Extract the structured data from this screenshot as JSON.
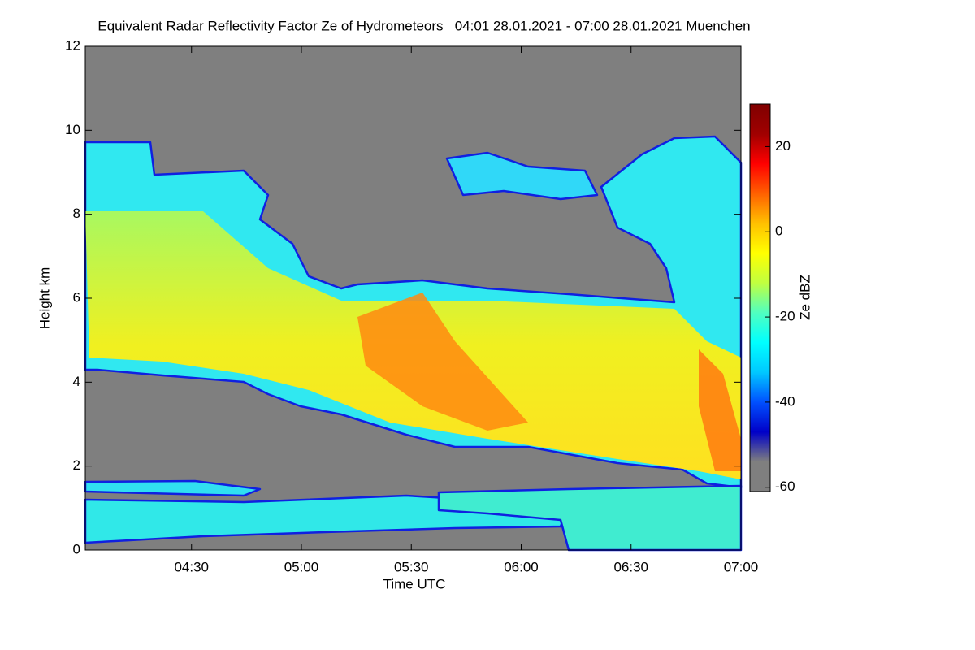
{
  "chart_data": {
    "type": "heatmap",
    "title": "Equivalent Radar Reflectivity Factor Ze of Hydrometeors   04:01 28.01.2021 - 07:00 28.01.2021 Muenchen",
    "x_label": "Time UTC",
    "y_label": "Height km",
    "xlim": [
      241,
      420
    ],
    "xticks": [
      {
        "value": 270,
        "label": "04:30"
      },
      {
        "value": 300,
        "label": "05:00"
      },
      {
        "value": 330,
        "label": "05:30"
      },
      {
        "value": 360,
        "label": "06:00"
      },
      {
        "value": 390,
        "label": "06:30"
      },
      {
        "value": 420,
        "label": "07:00"
      }
    ],
    "ylim": [
      0,
      12
    ],
    "yticks": [
      0,
      2,
      4,
      6,
      8,
      10,
      12
    ],
    "colorbar": {
      "label": "Ze dBZ",
      "clim": [
        -61,
        30
      ],
      "ticks": [
        -60,
        -40,
        -20,
        0,
        20
      ],
      "colormap": [
        "#7f7f7f",
        "#7f7f7f",
        "#0000c8",
        "#0050ff",
        "#00c8ff",
        "#00ffff",
        "#50ffc0",
        "#c0ff40",
        "#ffff00",
        "#ffc000",
        "#ff6000",
        "#ff0000",
        "#a00000",
        "#800000"
      ]
    }
  }
}
